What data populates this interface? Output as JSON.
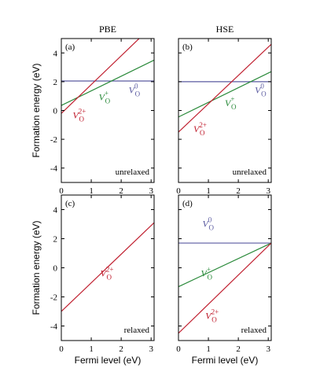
{
  "chart_data": [
    {
      "id": "a",
      "type": "line",
      "panel_label": "(a)",
      "column_title": "PBE",
      "note": "unrelaxed",
      "xlim": [
        0,
        3.1
      ],
      "ylim": [
        -5,
        5
      ],
      "xticks": [
        "0",
        "1",
        "2",
        "3"
      ],
      "yticks": [
        "4",
        "2",
        "0",
        "-2",
        "-4"
      ],
      "ylabel": "Formation energy (eV)",
      "xlabel": "",
      "series": [
        {
          "name": "V_O^0",
          "color": "#5a5aa0",
          "x": [
            0,
            3.1
          ],
          "y": [
            2.05,
            2.05
          ],
          "label_at": [
            2.25,
            1.2
          ]
        },
        {
          "name": "V_O^+",
          "color": "#2a8a3a",
          "x": [
            0,
            3.1
          ],
          "y": [
            0.35,
            3.5
          ],
          "label_at": [
            1.25,
            0.7
          ]
        },
        {
          "name": "V_O^2+",
          "color": "#c02030",
          "x": [
            0,
            3.1
          ],
          "y": [
            -0.2,
            6.0
          ],
          "label_at": [
            0.38,
            -0.55
          ]
        }
      ]
    },
    {
      "id": "b",
      "type": "line",
      "panel_label": "(b)",
      "column_title": "HSE",
      "note": "unrelaxed",
      "xlim": [
        0,
        3.1
      ],
      "ylim": [
        -5,
        5
      ],
      "xticks": [
        "0",
        "1",
        "2",
        "3"
      ],
      "yticks": [],
      "ylabel": "",
      "xlabel": "",
      "series": [
        {
          "name": "V_O^0",
          "color": "#5a5aa0",
          "x": [
            0,
            3.1
          ],
          "y": [
            2.0,
            2.0
          ],
          "label_at": [
            2.55,
            1.2
          ]
        },
        {
          "name": "V_O^+",
          "color": "#2a8a3a",
          "x": [
            0,
            3.1
          ],
          "y": [
            -0.45,
            2.7
          ],
          "label_at": [
            1.55,
            0.3
          ]
        },
        {
          "name": "V_O^2+",
          "color": "#c02030",
          "x": [
            0,
            3.1
          ],
          "y": [
            -1.5,
            4.6
          ],
          "label_at": [
            0.5,
            -1.5
          ]
        }
      ]
    },
    {
      "id": "c",
      "type": "line",
      "panel_label": "(c)",
      "column_title": "",
      "note": "relaxed",
      "xlim": [
        0,
        3.1
      ],
      "ylim": [
        -5,
        5
      ],
      "xticks": [
        "0",
        "1",
        "2",
        "3"
      ],
      "yticks": [
        "4",
        "2",
        "0",
        "-2",
        "-4"
      ],
      "ylabel": "Formation energy (eV)",
      "xlabel": "Fermi level (eV)",
      "series": [
        {
          "name": "V_O^2+",
          "color": "#c02030",
          "x": [
            0,
            3.1
          ],
          "y": [
            -3.0,
            3.1
          ],
          "label_at": [
            1.3,
            -0.6
          ]
        }
      ]
    },
    {
      "id": "d",
      "type": "line",
      "panel_label": "(d)",
      "column_title": "",
      "note": "relaxed",
      "xlim": [
        0,
        3.1
      ],
      "ylim": [
        -5,
        5
      ],
      "xticks": [
        "0",
        "1",
        "2",
        "3"
      ],
      "yticks": [],
      "ylabel": "",
      "xlabel": "Fermi level (eV)",
      "series": [
        {
          "name": "V_O^0",
          "color": "#5a5aa0",
          "x": [
            0,
            3.1
          ],
          "y": [
            1.7,
            1.7
          ],
          "label_at": [
            0.8,
            2.8
          ]
        },
        {
          "name": "V_O^+",
          "color": "#2a8a3a",
          "x": [
            0,
            3.1
          ],
          "y": [
            -1.3,
            1.7
          ],
          "label_at": [
            0.75,
            -0.6
          ]
        },
        {
          "name": "V_O^2+",
          "color": "#c02030",
          "x": [
            0,
            3.1
          ],
          "y": [
            -4.5,
            1.7
          ],
          "label_at": [
            0.9,
            -3.5
          ]
        }
      ]
    }
  ]
}
